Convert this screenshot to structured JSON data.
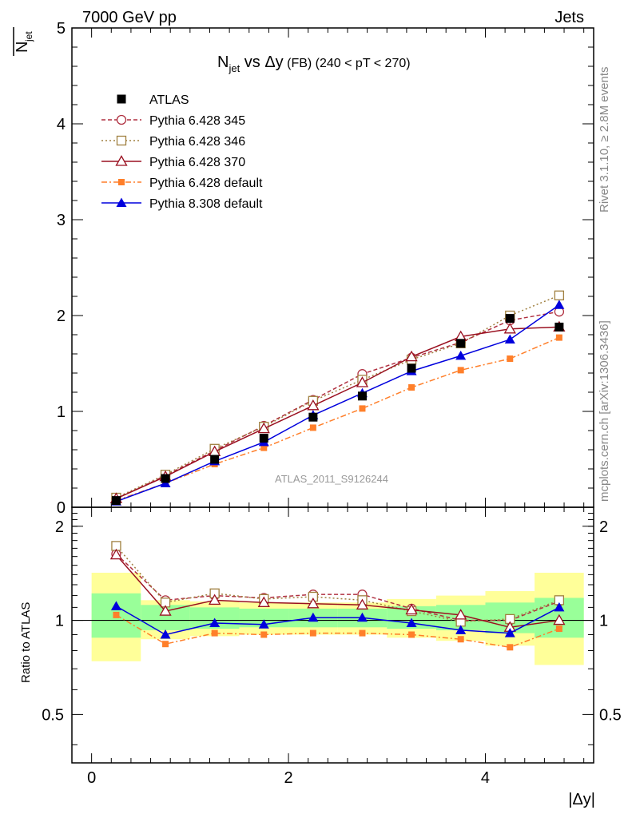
{
  "header": {
    "left": "7000 GeV pp",
    "right": "Jets"
  },
  "side_labels": {
    "rivet": "Rivet 3.1.10, ≥ 2.8M events",
    "mcplots": "mcplots.cern.ch [arXiv:1306.3436]"
  },
  "chart_data": {
    "type": "line",
    "title_parts": {
      "n": "N",
      "n_sub": "jet",
      "vs": " vs ",
      "delta": "Δ",
      "y": "y",
      "fb": " (FB)",
      "range": " (240 < pT < 270)"
    },
    "ylabel_main": "N",
    "ylabel_main_sub": "jet",
    "ylabel_ratio": "Ratio to ATLAS",
    "xlabel": "|Δy|",
    "watermark": "ATLAS_2011_S9126244",
    "xlim": [
      -0.2,
      5.1
    ],
    "ylim_main": [
      0,
      5
    ],
    "ylim_ratio": [
      0.35,
      2.3
    ],
    "xticks": [
      0,
      2,
      4
    ],
    "yticks_main": [
      0,
      1,
      2,
      3,
      4,
      5
    ],
    "yticks_ratio": [
      0.5,
      1,
      2
    ],
    "ytick_labels_ratio": [
      "0.5",
      "1",
      "2"
    ],
    "grid": false,
    "legend_position": "top-left",
    "x": [
      0.25,
      0.75,
      1.25,
      1.75,
      2.25,
      2.75,
      3.25,
      3.75,
      4.25,
      4.75
    ],
    "bin_edges": [
      0,
      0.5,
      1,
      1.5,
      2,
      2.5,
      3,
      3.5,
      4,
      4.5,
      5
    ],
    "data": {
      "name": "ATLAS",
      "values": [
        0.07,
        0.3,
        0.5,
        0.72,
        0.94,
        1.16,
        1.45,
        1.71,
        1.97,
        1.88
      ]
    },
    "ratio_band_inner": [
      [
        0.88,
        1.22
      ],
      [
        0.93,
        1.12
      ],
      [
        0.94,
        1.1
      ],
      [
        0.95,
        1.09
      ],
      [
        0.95,
        1.09
      ],
      [
        0.95,
        1.09
      ],
      [
        0.94,
        1.11
      ],
      [
        0.93,
        1.12
      ],
      [
        0.91,
        1.14
      ],
      [
        0.88,
        1.18
      ]
    ],
    "ratio_band_outer": [
      [
        0.74,
        1.42
      ],
      [
        0.87,
        1.16
      ],
      [
        0.89,
        1.15
      ],
      [
        0.9,
        1.14
      ],
      [
        0.9,
        1.14
      ],
      [
        0.9,
        1.14
      ],
      [
        0.88,
        1.17
      ],
      [
        0.86,
        1.2
      ],
      [
        0.83,
        1.24
      ],
      [
        0.72,
        1.42
      ]
    ],
    "series": [
      {
        "name": "Pythia 6.428 345",
        "color": "#b03040",
        "dash": "5,3",
        "marker": "circle-open",
        "values": [
          0.09,
          0.33,
          0.59,
          0.85,
          1.12,
          1.39,
          1.56,
          1.72,
          1.95,
          2.04
        ],
        "ratio": [
          1.63,
          1.16,
          1.2,
          1.18,
          1.21,
          1.21,
          1.09,
          1.0,
          1.0,
          1.15
        ]
      },
      {
        "name": "Pythia 6.428 346",
        "color": "#a08040",
        "dash": "2,3",
        "marker": "square-open",
        "values": [
          0.1,
          0.34,
          0.61,
          0.84,
          1.11,
          1.33,
          1.54,
          1.71,
          2.0,
          2.21
        ],
        "ratio": [
          1.73,
          1.14,
          1.22,
          1.17,
          1.19,
          1.16,
          1.07,
          0.99,
          1.01,
          1.16
        ]
      },
      {
        "name": "Pythia 6.428 370",
        "color": "#9a1020",
        "dash": "",
        "marker": "triangle-open",
        "values": [
          0.09,
          0.32,
          0.58,
          0.82,
          1.06,
          1.3,
          1.57,
          1.78,
          1.86,
          1.88
        ],
        "ratio": [
          1.62,
          1.07,
          1.16,
          1.14,
          1.13,
          1.12,
          1.08,
          1.04,
          0.95,
          1.0
        ]
      },
      {
        "name": "Pythia 6.428 default",
        "color": "#ff7f2a",
        "dash": "7,3,2,3",
        "marker": "square-filled",
        "values": [
          0.07,
          0.25,
          0.45,
          0.62,
          0.83,
          1.03,
          1.25,
          1.43,
          1.55,
          1.77
        ],
        "ratio": [
          1.04,
          0.84,
          0.91,
          0.9,
          0.91,
          0.91,
          0.9,
          0.87,
          0.82,
          0.94
        ]
      },
      {
        "name": "Pythia 8.308 default",
        "color": "#0000dd",
        "dash": "",
        "marker": "triangle-filled",
        "values": [
          0.06,
          0.25,
          0.48,
          0.68,
          0.96,
          1.19,
          1.42,
          1.58,
          1.75,
          2.11
        ],
        "ratio": [
          1.11,
          0.9,
          0.98,
          0.97,
          1.02,
          1.02,
          0.98,
          0.93,
          0.91,
          1.1
        ]
      }
    ]
  }
}
